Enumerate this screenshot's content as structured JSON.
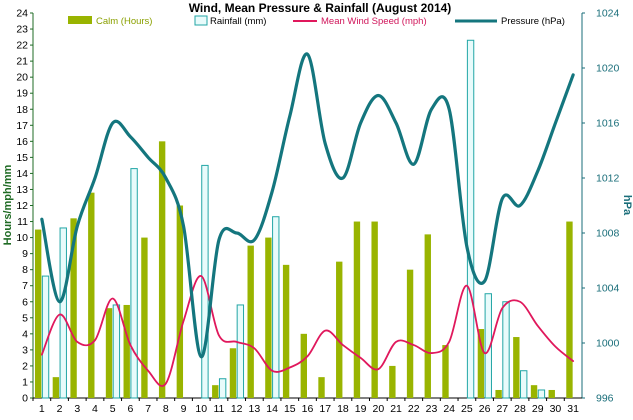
{
  "chart_data": {
    "type": "bar",
    "title": "Wind, Mean Pressure & Rainfall (August 2014)",
    "ylabel": "Hours/mph/mm",
    "y2label": "hPa",
    "categories": [
      "1",
      "2",
      "3",
      "4",
      "5",
      "6",
      "7",
      "8",
      "9",
      "10",
      "11",
      "12",
      "13",
      "14",
      "15",
      "16",
      "17",
      "18",
      "19",
      "20",
      "21",
      "22",
      "23",
      "24",
      "25",
      "26",
      "27",
      "28",
      "29",
      "30",
      "31"
    ],
    "ylim": [
      0,
      24
    ],
    "y2lim": [
      996,
      1024
    ],
    "yticks": [
      "0",
      "1",
      "2",
      "3",
      "4",
      "5",
      "6",
      "7",
      "8",
      "9",
      "10",
      "11",
      "12",
      "13",
      "14",
      "15",
      "16",
      "17",
      "18",
      "19",
      "20",
      "21",
      "22",
      "23",
      "24"
    ],
    "y2ticks": [
      "996",
      "1000",
      "1004",
      "1008",
      "1012",
      "1016",
      "1020",
      "1024"
    ],
    "grid": false,
    "legend": "top",
    "series": [
      {
        "name": "Calm (Hours)",
        "kind": "bar",
        "color": "#99b400",
        "values": [
          10.5,
          1.3,
          11.2,
          12.8,
          5.6,
          5.8,
          10.0,
          16.0,
          12.0,
          0,
          0.8,
          3.1,
          9.5,
          10.0,
          8.3,
          4.0,
          1.3,
          8.5,
          11.0,
          11.0,
          2.0,
          8.0,
          10.2,
          3.3,
          0,
          4.3,
          0.5,
          3.8,
          0.8,
          0.5,
          11.0
        ]
      },
      {
        "name": "Rainfall (mm)",
        "kind": "bar",
        "color": "#e8fbfb",
        "stroke": "#22a6a6",
        "values": [
          7.6,
          10.6,
          0,
          0,
          5.8,
          14.3,
          0,
          0,
          0,
          14.5,
          1.2,
          5.8,
          0,
          11.3,
          0,
          0,
          0,
          0,
          0,
          0,
          0,
          0,
          0,
          0,
          22.3,
          6.5,
          6.0,
          1.7,
          0.5,
          0,
          0
        ]
      },
      {
        "name": "Mean Wind Speed (mph)",
        "kind": "line",
        "color": "#e0185c",
        "values": [
          2.7,
          5.2,
          3.5,
          3.6,
          6.2,
          3.3,
          1.7,
          0.9,
          4.8,
          7.6,
          3.9,
          3.5,
          3.1,
          1.7,
          1.9,
          2.6,
          4.2,
          3.3,
          2.5,
          1.8,
          3.5,
          3.3,
          2.8,
          3.5,
          7.0,
          2.8,
          5.6,
          6.0,
          4.5,
          3.2,
          2.3
        ]
      },
      {
        "name": "Pressure (hPa)",
        "kind": "line",
        "axis": "right",
        "color": "#14767e",
        "values": [
          1009.0,
          1003.0,
          1008.5,
          1012.0,
          1016.0,
          1015.0,
          1013.5,
          1012.0,
          1008.5,
          999.0,
          1007.5,
          1008.0,
          1007.5,
          1011.0,
          1016.5,
          1021.0,
          1014.5,
          1012.0,
          1016.0,
          1018.0,
          1016.0,
          1013.0,
          1017.0,
          1017.0,
          1007.0,
          1004.5,
          1010.5,
          1010.0,
          1012.5,
          1016.0,
          1019.5
        ]
      }
    ]
  }
}
